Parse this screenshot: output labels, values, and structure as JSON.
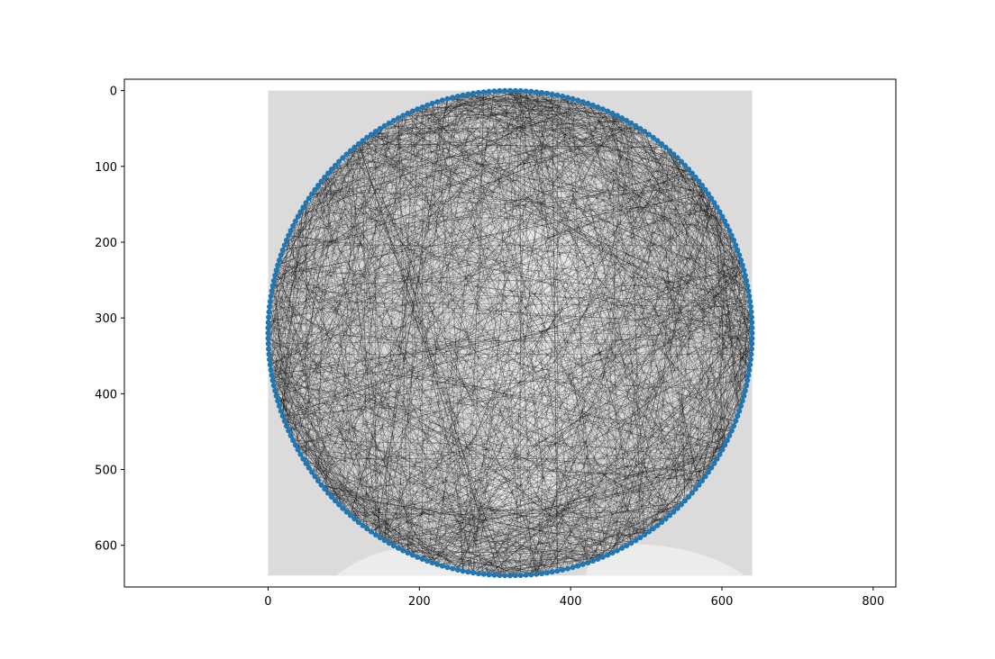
{
  "chart_data": {
    "type": "scatter",
    "description_free": true,
    "title": "",
    "xlabel": "",
    "ylabel": "",
    "xlim": [
      -190,
      830
    ],
    "ylim": [
      655,
      -15
    ],
    "y_inverted": true,
    "grid": false,
    "xticks": [
      0,
      200,
      400,
      600,
      800
    ],
    "yticks": [
      0,
      100,
      200,
      300,
      400,
      500,
      600
    ],
    "xtick_labels": [
      "0",
      "200",
      "400",
      "600",
      "800"
    ],
    "ytick_labels": [
      "0",
      "100",
      "200",
      "300",
      "400",
      "500",
      "600"
    ],
    "background_image": {
      "extent_x": [
        0,
        640
      ],
      "extent_y": [
        0,
        640
      ],
      "color": "#dcdbdc"
    },
    "circle": {
      "center_x": 320,
      "center_y": 320,
      "radius": 320,
      "nail_count": 288
    },
    "nail_color": "#1f77b4",
    "thread_color": "#000000",
    "thread_line_count": 1400
  }
}
